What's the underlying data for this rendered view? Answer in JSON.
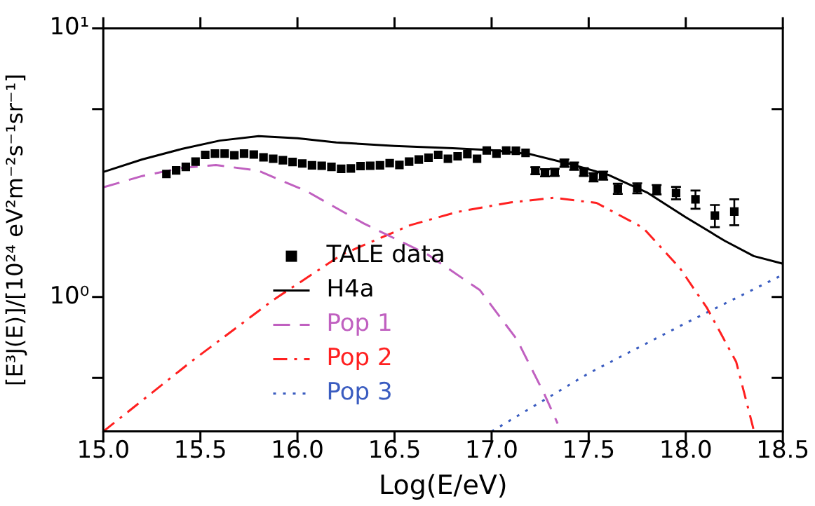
{
  "chart_data": {
    "type": "line",
    "xlabel": "Log(E/eV)",
    "ylabel": "[E³J(E)]/[10²⁴ eV²m⁻²s⁻¹sr⁻¹]",
    "xlim": [
      15.0,
      18.5
    ],
    "xticks": [
      {
        "value": 15,
        "label": "15.0"
      },
      {
        "value": 15.5,
        "label": "15.5"
      },
      {
        "value": 16,
        "label": "16.0"
      },
      {
        "value": 16.5,
        "label": "16.5"
      },
      {
        "value": 17,
        "label": "17.0"
      },
      {
        "value": 17.5,
        "label": "17.5"
      },
      {
        "value": 18,
        "label": "18.0"
      },
      {
        "value": 18.5,
        "label": "18.5"
      }
    ],
    "ylim": [
      0.316,
      10
    ],
    "yticks": [
      {
        "value": 0.5,
        "label": null
      },
      {
        "value": 1,
        "label": "10⁰"
      },
      {
        "value": 5,
        "label": null
      },
      {
        "value": 10,
        "label": "10¹"
      }
    ],
    "log": "y",
    "grid": false,
    "legend": "bottom left",
    "series": [
      {
        "name": "TALE data",
        "type": "scatter",
        "marker": "square",
        "color": "#000000",
        "x": [
          15.325,
          15.375,
          15.425,
          15.475,
          15.525,
          15.575,
          15.625,
          15.675,
          15.725,
          15.775,
          15.825,
          15.875,
          15.925,
          15.975,
          16.025,
          16.075,
          16.125,
          16.175,
          16.225,
          16.275,
          16.325,
          16.375,
          16.425,
          16.475,
          16.525,
          16.575,
          16.625,
          16.675,
          16.725,
          16.775,
          16.825,
          16.875,
          16.925,
          16.975,
          17.025,
          17.075,
          17.125,
          17.175,
          17.225,
          17.275,
          17.325,
          17.375,
          17.425,
          17.475,
          17.525,
          17.575,
          17.65,
          17.75,
          17.85,
          17.95,
          18.05,
          18.15,
          18.25
        ],
        "values": [
          2.87,
          2.96,
          3.05,
          3.19,
          3.38,
          3.42,
          3.42,
          3.37,
          3.42,
          3.39,
          3.31,
          3.27,
          3.23,
          3.18,
          3.14,
          3.09,
          3.08,
          3.05,
          3.0,
          3.01,
          3.07,
          3.08,
          3.09,
          3.15,
          3.1,
          3.19,
          3.25,
          3.3,
          3.38,
          3.27,
          3.34,
          3.4,
          3.27,
          3.51,
          3.42,
          3.51,
          3.5,
          3.44,
          2.95,
          2.9,
          2.91,
          3.15,
          3.07,
          2.92,
          2.79,
          2.83,
          2.53,
          2.54,
          2.51,
          2.44,
          2.31,
          2.01,
          2.08
        ],
        "errors": [
          null,
          null,
          null,
          null,
          null,
          null,
          null,
          null,
          null,
          null,
          null,
          null,
          null,
          null,
          null,
          null,
          null,
          null,
          null,
          null,
          null,
          null,
          null,
          null,
          null,
          null,
          null,
          null,
          null,
          null,
          null,
          null,
          null,
          null,
          null,
          null,
          null,
          null,
          0.09,
          0.09,
          0.09,
          0.1,
          0.1,
          0.1,
          0.1,
          0.1,
          0.11,
          0.11,
          0.1,
          0.13,
          0.18,
          0.19,
          0.23
        ]
      },
      {
        "name": "H4a",
        "marker": "none",
        "line_style": "solid",
        "color": "#000000",
        "x": [
          15.0,
          15.2,
          15.4,
          15.6,
          15.8,
          16.0,
          16.2,
          16.5,
          16.8,
          17.0,
          17.2,
          17.4,
          17.6,
          17.8,
          18.0,
          18.2,
          18.35,
          18.5
        ],
        "values": [
          2.92,
          3.25,
          3.55,
          3.82,
          3.97,
          3.9,
          3.76,
          3.65,
          3.58,
          3.52,
          3.4,
          3.13,
          2.85,
          2.45,
          1.98,
          1.62,
          1.42,
          1.33
        ]
      },
      {
        "name": "Pop 1",
        "marker": "none",
        "line_style": "dashed",
        "color": "#c060c0",
        "x": [
          15.0,
          15.2,
          15.4,
          15.58,
          15.8,
          16.05,
          16.34,
          16.67,
          16.94,
          17.13,
          17.27,
          17.34
        ],
        "values": [
          2.56,
          2.82,
          3.02,
          3.1,
          2.95,
          2.47,
          1.88,
          1.44,
          1.06,
          0.695,
          0.438,
          0.338
        ]
      },
      {
        "name": "Pop 2",
        "marker": "none",
        "line_style": "dashdot",
        "color": "#ff2020",
        "x": [
          15.0,
          15.45,
          15.88,
          16.23,
          16.58,
          16.82,
          17.1,
          17.32,
          17.54,
          17.78,
          17.97,
          18.11,
          18.26,
          18.35
        ],
        "values": [
          0.316,
          0.573,
          0.98,
          1.44,
          1.85,
          2.07,
          2.25,
          2.34,
          2.24,
          1.81,
          1.28,
          0.909,
          0.573,
          0.32
        ]
      },
      {
        "name": "Pop 3",
        "marker": "none",
        "line_style": "dotted",
        "color": "#3a5cc0",
        "x": [
          17.0,
          17.5,
          18.0,
          18.5
        ],
        "values": [
          0.316,
          0.52,
          0.8,
          1.21
        ]
      }
    ]
  }
}
